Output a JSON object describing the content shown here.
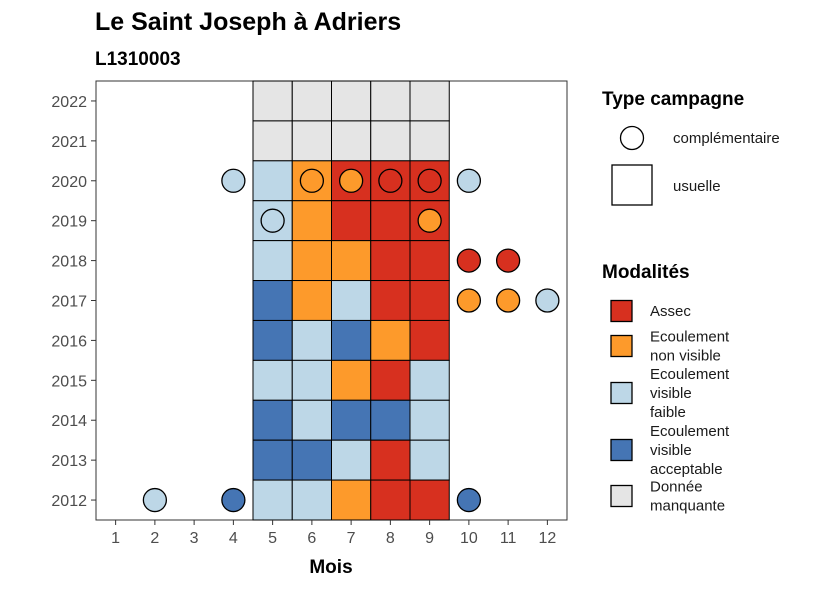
{
  "chart_data": {
    "type": "heatmap",
    "title": "Le Saint Joseph à Adriers",
    "subtitle": "L1310003",
    "xlabel": "Mois",
    "ylabel": "",
    "x_ticks": [
      "1",
      "2",
      "3",
      "4",
      "5",
      "6",
      "7",
      "8",
      "9",
      "10",
      "11",
      "12"
    ],
    "y_ticks": [
      "2012",
      "2013",
      "2014",
      "2015",
      "2016",
      "2017",
      "2018",
      "2019",
      "2020",
      "2021",
      "2022"
    ],
    "xlim": [
      0.5,
      12.5
    ],
    "ylim": [
      2011.5,
      2022.5
    ],
    "colors": {
      "Assec": "#d7301f",
      "Ecoulement non visible": "#fd9a2b",
      "Ecoulement visible faible": "#bdd7e7",
      "Ecoulement visible acceptable": "#4575b4",
      "Donnée manquante": "#e5e5e5"
    },
    "usuelle": [
      {
        "year": 2022,
        "month": 5,
        "mod": "Donnée manquante"
      },
      {
        "year": 2022,
        "month": 6,
        "mod": "Donnée manquante"
      },
      {
        "year": 2022,
        "month": 7,
        "mod": "Donnée manquante"
      },
      {
        "year": 2022,
        "month": 8,
        "mod": "Donnée manquante"
      },
      {
        "year": 2022,
        "month": 9,
        "mod": "Donnée manquante"
      },
      {
        "year": 2021,
        "month": 5,
        "mod": "Donnée manquante"
      },
      {
        "year": 2021,
        "month": 6,
        "mod": "Donnée manquante"
      },
      {
        "year": 2021,
        "month": 7,
        "mod": "Donnée manquante"
      },
      {
        "year": 2021,
        "month": 8,
        "mod": "Donnée manquante"
      },
      {
        "year": 2021,
        "month": 9,
        "mod": "Donnée manquante"
      },
      {
        "year": 2020,
        "month": 5,
        "mod": "Ecoulement visible faible"
      },
      {
        "year": 2020,
        "month": 6,
        "mod": "Ecoulement non visible"
      },
      {
        "year": 2020,
        "month": 7,
        "mod": "Assec"
      },
      {
        "year": 2020,
        "month": 8,
        "mod": "Assec"
      },
      {
        "year": 2020,
        "month": 9,
        "mod": "Assec"
      },
      {
        "year": 2019,
        "month": 5,
        "mod": "Ecoulement visible faible"
      },
      {
        "year": 2019,
        "month": 6,
        "mod": "Ecoulement non visible"
      },
      {
        "year": 2019,
        "month": 7,
        "mod": "Assec"
      },
      {
        "year": 2019,
        "month": 8,
        "mod": "Assec"
      },
      {
        "year": 2019,
        "month": 9,
        "mod": "Assec"
      },
      {
        "year": 2018,
        "month": 5,
        "mod": "Ecoulement visible faible"
      },
      {
        "year": 2018,
        "month": 6,
        "mod": "Ecoulement non visible"
      },
      {
        "year": 2018,
        "month": 7,
        "mod": "Ecoulement non visible"
      },
      {
        "year": 2018,
        "month": 8,
        "mod": "Assec"
      },
      {
        "year": 2018,
        "month": 9,
        "mod": "Assec"
      },
      {
        "year": 2017,
        "month": 5,
        "mod": "Ecoulement visible acceptable"
      },
      {
        "year": 2017,
        "month": 6,
        "mod": "Ecoulement non visible"
      },
      {
        "year": 2017,
        "month": 7,
        "mod": "Ecoulement visible faible"
      },
      {
        "year": 2017,
        "month": 8,
        "mod": "Assec"
      },
      {
        "year": 2017,
        "month": 9,
        "mod": "Assec"
      },
      {
        "year": 2016,
        "month": 5,
        "mod": "Ecoulement visible acceptable"
      },
      {
        "year": 2016,
        "month": 6,
        "mod": "Ecoulement visible faible"
      },
      {
        "year": 2016,
        "month": 7,
        "mod": "Ecoulement visible acceptable"
      },
      {
        "year": 2016,
        "month": 8,
        "mod": "Ecoulement non visible"
      },
      {
        "year": 2016,
        "month": 9,
        "mod": "Assec"
      },
      {
        "year": 2015,
        "month": 5,
        "mod": "Ecoulement visible faible"
      },
      {
        "year": 2015,
        "month": 6,
        "mod": "Ecoulement visible faible"
      },
      {
        "year": 2015,
        "month": 7,
        "mod": "Ecoulement non visible"
      },
      {
        "year": 2015,
        "month": 8,
        "mod": "Assec"
      },
      {
        "year": 2015,
        "month": 9,
        "mod": "Ecoulement visible faible"
      },
      {
        "year": 2014,
        "month": 5,
        "mod": "Ecoulement visible acceptable"
      },
      {
        "year": 2014,
        "month": 6,
        "mod": "Ecoulement visible faible"
      },
      {
        "year": 2014,
        "month": 7,
        "mod": "Ecoulement visible acceptable"
      },
      {
        "year": 2014,
        "month": 8,
        "mod": "Ecoulement visible acceptable"
      },
      {
        "year": 2014,
        "month": 9,
        "mod": "Ecoulement visible faible"
      },
      {
        "year": 2013,
        "month": 5,
        "mod": "Ecoulement visible acceptable"
      },
      {
        "year": 2013,
        "month": 6,
        "mod": "Ecoulement visible acceptable"
      },
      {
        "year": 2013,
        "month": 7,
        "mod": "Ecoulement visible faible"
      },
      {
        "year": 2013,
        "month": 8,
        "mod": "Assec"
      },
      {
        "year": 2013,
        "month": 9,
        "mod": "Ecoulement visible faible"
      },
      {
        "year": 2012,
        "month": 5,
        "mod": "Ecoulement visible faible"
      },
      {
        "year": 2012,
        "month": 6,
        "mod": "Ecoulement visible faible"
      },
      {
        "year": 2012,
        "month": 7,
        "mod": "Ecoulement non visible"
      },
      {
        "year": 2012,
        "month": 8,
        "mod": "Assec"
      },
      {
        "year": 2012,
        "month": 9,
        "mod": "Assec"
      }
    ],
    "complementaire": [
      {
        "year": 2020,
        "month": 4,
        "mod": "Ecoulement visible faible"
      },
      {
        "year": 2020,
        "month": 6,
        "mod": "Ecoulement non visible"
      },
      {
        "year": 2020,
        "month": 7,
        "mod": "Ecoulement non visible"
      },
      {
        "year": 2020,
        "month": 8,
        "mod": "Assec"
      },
      {
        "year": 2020,
        "month": 9,
        "mod": "Assec"
      },
      {
        "year": 2020,
        "month": 10,
        "mod": "Ecoulement visible faible"
      },
      {
        "year": 2019,
        "month": 5,
        "mod": "Ecoulement visible faible"
      },
      {
        "year": 2019,
        "month": 9,
        "mod": "Ecoulement non visible"
      },
      {
        "year": 2018,
        "month": 10,
        "mod": "Assec"
      },
      {
        "year": 2018,
        "month": 11,
        "mod": "Assec"
      },
      {
        "year": 2017,
        "month": 10,
        "mod": "Ecoulement non visible"
      },
      {
        "year": 2017,
        "month": 11,
        "mod": "Ecoulement non visible"
      },
      {
        "year": 2017,
        "month": 12,
        "mod": "Ecoulement visible faible"
      },
      {
        "year": 2012,
        "month": 2,
        "mod": "Ecoulement visible faible"
      },
      {
        "year": 2012,
        "month": 4,
        "mod": "Ecoulement visible acceptable"
      },
      {
        "year": 2012,
        "month": 10,
        "mod": "Ecoulement visible acceptable"
      }
    ],
    "legend": {
      "placement": "right",
      "type_title": "Type campagne",
      "type_items": [
        "complémentaire",
        "usuelle"
      ],
      "mod_title": "Modalités",
      "mod_items": [
        {
          "key": "Assec",
          "lines": [
            "Assec"
          ]
        },
        {
          "key": "Ecoulement non visible",
          "lines": [
            "Ecoulement",
            "non visible"
          ]
        },
        {
          "key": "Ecoulement visible faible",
          "lines": [
            "Ecoulement",
            "visible",
            "faible"
          ]
        },
        {
          "key": "Ecoulement visible acceptable",
          "lines": [
            "Ecoulement",
            "visible",
            "acceptable"
          ]
        },
        {
          "key": "Donnée manquante",
          "lines": [
            "Donnée",
            "manquante"
          ]
        }
      ]
    }
  }
}
